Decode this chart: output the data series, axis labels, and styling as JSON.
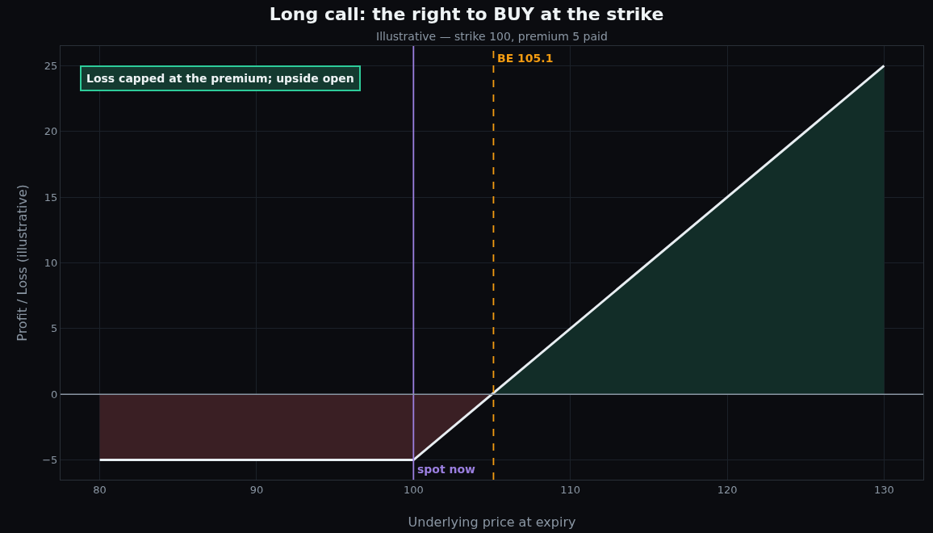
{
  "chart_data": {
    "type": "line",
    "title": "Long call: the right to BUY at the strike",
    "subtitle": "Illustrative — strike 100, premium 5 paid",
    "xlabel": "Underlying price at expiry",
    "ylabel": "Profit / Loss (illustrative)",
    "series": [
      {
        "type": "area",
        "color": "#3a1f24",
        "x": [
          80,
          100,
          105
        ],
        "values": [
          -5,
          -5,
          0
        ]
      },
      {
        "type": "area",
        "color": "#122d28",
        "x": [
          105,
          130
        ],
        "values": [
          0,
          25
        ]
      },
      {
        "color": "#e8eef2",
        "x": [
          80,
          100,
          130
        ],
        "values": [
          -5,
          -5,
          25
        ]
      }
    ],
    "ref_lines": [
      {
        "axis": "x",
        "value": 100,
        "label": "spot now",
        "color": "#9b7fe0",
        "line_style": "solid"
      },
      {
        "axis": "x",
        "value": 105.1,
        "label": "BE 105.1",
        "color": "#f39c12",
        "line_style": "dashed"
      },
      {
        "axis": "y",
        "value": 0,
        "color": "#8a96a3",
        "line_style": "solid"
      }
    ],
    "annotations": [
      "Loss capped at the premium; upside open"
    ],
    "xlim": [
      77.5,
      132.5
    ],
    "xticks": [
      80,
      90,
      100,
      110,
      120,
      130
    ],
    "ylim": [
      -6.5,
      26.5
    ],
    "yticks": [
      -5,
      0,
      5,
      10,
      15,
      20,
      25
    ],
    "grid": true
  }
}
